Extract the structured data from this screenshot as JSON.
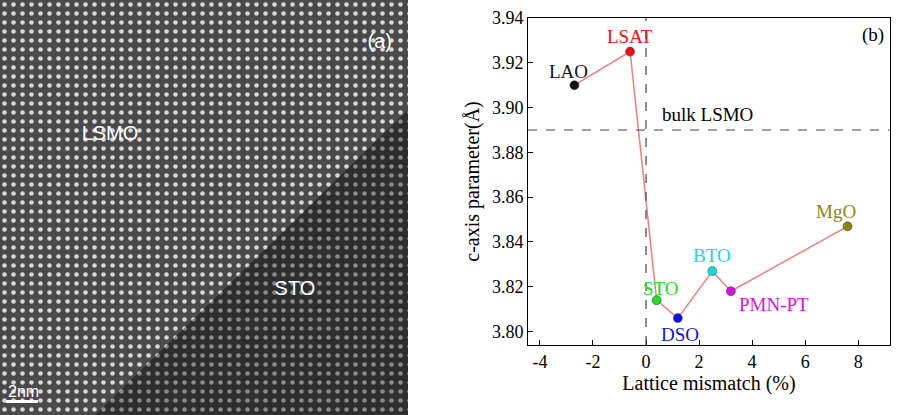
{
  "chart_data": {
    "type": "scatter",
    "panel_label": "(b)",
    "x_label": "Lattice mismatch (%)",
    "y_label": "c-axis parameter(Å)",
    "x": [
      -2.7,
      -0.6,
      0.4,
      1.2,
      2.5,
      3.2,
      7.6
    ],
    "values": [
      3.91,
      3.925,
      3.814,
      3.806,
      3.827,
      3.818,
      3.847
    ],
    "point_labels": [
      "LAO",
      "LSAT",
      "STO",
      "DSO",
      "BTO",
      "PMN-PT",
      "MgO"
    ],
    "colors": [
      "#111111",
      "#ee1111",
      "#22dd22",
      "#1111ee",
      "#11dddd",
      "#dd11dd",
      "#888811"
    ],
    "color": "#f08080",
    "marker": "circle",
    "line_style": "solid",
    "hline": {
      "value": 3.89,
      "label": "bulk LSMO"
    },
    "vline": 0,
    "xlim": [
      -4.45,
      9.2
    ],
    "xticks": [
      -4,
      -2,
      0,
      2,
      4,
      6,
      8
    ],
    "ylim": [
      3.794,
      3.94
    ],
    "yticks": [
      {
        "value": 3.8,
        "label": "3.80"
      },
      3.82,
      3.84,
      3.86,
      3.88,
      {
        "value": 3.9,
        "label": "3.90"
      },
      3.92,
      3.94
    ],
    "grid": false
  },
  "image_panel": {
    "panel_label": "(a)",
    "labels": [
      "LSMO",
      "STO"
    ],
    "scale_bar": "2nm"
  }
}
